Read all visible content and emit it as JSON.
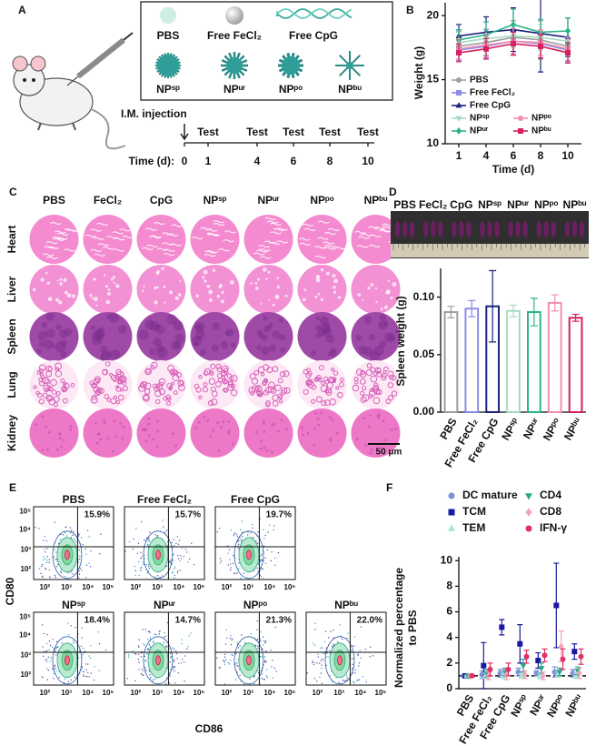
{
  "panel_labels": [
    "A",
    "B",
    "C",
    "D",
    "E",
    "F"
  ],
  "panel_a": {
    "groups": [
      "PBS",
      "Free FeCl₂",
      "Free CpG",
      "NPˢᵖ",
      "NPᵘʳ",
      "NPᵖᵒ",
      "NPᵇᵘ"
    ],
    "injection": "I.M. injection",
    "test": "Test",
    "time_label": "Time (d):",
    "days": [
      "0",
      "1",
      "4",
      "6",
      "8",
      "10"
    ]
  },
  "panel_c": {
    "columns": [
      "PBS",
      "FeCl₂",
      "CpG",
      "NPˢᵖ",
      "NPᵘʳ",
      "NPᵖᵒ",
      "NPᵇᵘ"
    ],
    "rows": [
      "Heart",
      "Liver",
      "Spleen",
      "Lung",
      "Kidney"
    ],
    "scale_bar": "50 μm"
  },
  "panel_d": {
    "photo_groups": [
      "PBS",
      "FeCl₂",
      "CpG",
      "NPˢᵖ",
      "NPᵘʳ",
      "NPᵖᵒ",
      "NPᵇᵘ"
    ]
  },
  "panel_e": {
    "plots": [
      {
        "title": "PBS",
        "percent": "15.9%"
      },
      {
        "title": "Free FeCl₂",
        "percent": "15.7%"
      },
      {
        "title": "Free CpG",
        "percent": "19.7%"
      },
      {
        "title": "NPˢᵖ",
        "percent": "18.4%"
      },
      {
        "title": "NPᵘʳ",
        "percent": "14.7%"
      },
      {
        "title": "NPᵖᵒ",
        "percent": "21.3%"
      },
      {
        "title": "NPᵇᵘ",
        "percent": "22.0%"
      }
    ],
    "xlabel": "CD86",
    "ylabel": "CD80",
    "x_ticks": [
      "10²",
      "10³",
      "10⁴",
      "10⁵"
    ],
    "y_ticks": [
      "10⁵",
      "10⁴",
      "10³",
      "10²"
    ]
  },
  "chart_data": [
    {
      "type": "line",
      "ylabel": "Weight (g)",
      "xlabel": "Time (d)",
      "categories": [
        "1",
        "4",
        "6",
        "8",
        "10"
      ],
      "ylim": [
        10,
        21
      ],
      "yticks": [
        10,
        15,
        20
      ],
      "legend": "lower left",
      "series": [
        {
          "name": "PBS",
          "color": "#9e9e9e",
          "marker": "circle",
          "values": [
            17.6,
            17.9,
            18.3,
            18.1,
            17.6
          ],
          "errors": [
            1.2,
            1.0,
            1.3,
            1.5,
            1.2
          ]
        },
        {
          "name": "Free FeCl₂",
          "color": "#8c8ce6",
          "marker": "square",
          "values": [
            17.3,
            17.6,
            18.0,
            17.8,
            17.3
          ],
          "errors": [
            0.8,
            0.9,
            1.0,
            1.1,
            0.9
          ]
        },
        {
          "name": "Free CpG",
          "color": "#1a237e",
          "marker": "triangle-up",
          "values": [
            18.4,
            18.7,
            18.9,
            18.6,
            18.3
          ],
          "errors": [
            0.9,
            1.2,
            1.7,
            3.0,
            1.5
          ]
        },
        {
          "name": "NPˢᵖ",
          "color": "#a5dcc0",
          "marker": "triangle-down",
          "values": [
            17.9,
            18.2,
            18.4,
            18.3,
            18.0
          ],
          "errors": [
            0.8,
            0.8,
            0.9,
            1.0,
            0.8
          ]
        },
        {
          "name": "NPᵘʳ",
          "color": "#2ab58a",
          "marker": "diamond",
          "values": [
            18.1,
            18.5,
            19.3,
            18.7,
            18.8
          ],
          "errors": [
            0.8,
            1.0,
            1.2,
            1.0,
            1.0
          ]
        },
        {
          "name": "NPᵖᵒ",
          "color": "#f28fb0",
          "marker": "circle",
          "values": [
            17.4,
            17.7,
            18.0,
            17.9,
            17.4
          ],
          "errors": [
            0.8,
            0.9,
            1.0,
            1.0,
            0.9
          ]
        },
        {
          "name": "NPᵇᵘ",
          "color": "#d6205f",
          "marker": "square",
          "values": [
            17.1,
            17.4,
            17.8,
            17.6,
            17.1
          ],
          "errors": [
            0.7,
            0.8,
            0.9,
            0.9,
            0.8
          ]
        }
      ]
    },
    {
      "type": "bar",
      "ylabel": "Spleen weight (g)",
      "categories": [
        "PBS",
        "Free FeCl₂",
        "Free CpG",
        "NPˢᵖ",
        "NPᵘʳ",
        "NPᵖᵒ",
        "NPᵇᵘ"
      ],
      "ylim": [
        0,
        0.125
      ],
      "yticks": [
        {
          "value": 0,
          "label": "0.00"
        },
        0.05,
        {
          "value": 0.1,
          "label": "0.10"
        }
      ],
      "values": [
        0.087,
        0.09,
        0.092,
        0.088,
        0.087,
        0.095,
        0.082
      ],
      "errors": [
        0.005,
        0.007,
        0.031,
        0.005,
        0.012,
        0.007,
        0.003
      ],
      "colors": [
        "#9e9e9e",
        "#8c8ce6",
        "#1a237e",
        "#a5dcc0",
        "#2ab58a",
        "#f28fb0",
        "#d6205f"
      ]
    },
    {
      "type": "scatter",
      "ylabel": [
        "Normalized percentage",
        "to PBS"
      ],
      "categories": [
        "PBS",
        "Free FeCl₂",
        "Free CpG",
        "NPˢᵖ",
        "NPᵘʳ",
        "NPᵖᵒ",
        "NPᵇᵘ"
      ],
      "ylim": [
        0,
        10.3
      ],
      "yticks": [
        0,
        2,
        4,
        6,
        8,
        10
      ],
      "reference_line": 1,
      "legend": "top",
      "series": [
        {
          "name": "DC mature",
          "color": "#7e8fd6",
          "marker": "circle",
          "values": [
            1,
            1.1,
            1.2,
            1.3,
            1.2,
            1.3,
            1.2
          ],
          "errors": [
            0.1,
            0.3,
            0.3,
            0.3,
            0.2,
            0.4,
            0.3
          ]
        },
        {
          "name": "TCM",
          "color": "#1a1aa0",
          "marker": "square",
          "values": [
            1,
            1.8,
            4.8,
            3.5,
            2.2,
            6.5,
            2.9
          ],
          "errors": [
            0.1,
            1.8,
            0.6,
            1.5,
            0.6,
            3.3,
            0.6
          ]
        },
        {
          "name": "TEM",
          "color": "#a8e4dc",
          "marker": "triangle-up",
          "values": [
            1,
            1.0,
            1.0,
            1.0,
            1.0,
            1.1,
            1.0
          ],
          "errors": [
            0.05,
            0.2,
            0.2,
            0.2,
            0.2,
            0.2,
            0.2
          ]
        },
        {
          "name": "CD4",
          "color": "#2aa88a",
          "marker": "triangle-down",
          "values": [
            1,
            1.2,
            1.3,
            1.8,
            1.6,
            1.3,
            1.4
          ],
          "errors": [
            0.05,
            0.3,
            0.3,
            0.5,
            0.4,
            0.3,
            0.3
          ]
        },
        {
          "name": "CD8",
          "color": "#f4a4b8",
          "marker": "diamond",
          "values": [
            1,
            1.0,
            1.1,
            1.1,
            1.0,
            3.3,
            1.2
          ],
          "errors": [
            0.05,
            0.3,
            0.4,
            0.3,
            0.3,
            1.2,
            0.4
          ]
        },
        {
          "name": "IFN-γ",
          "color": "#e0306a",
          "marker": "circle",
          "values": [
            1,
            1.5,
            1.5,
            2.5,
            2.6,
            2.3,
            2.5
          ],
          "errors": [
            0.1,
            0.5,
            0.5,
            0.5,
            0.5,
            0.8,
            0.6
          ]
        }
      ]
    }
  ]
}
